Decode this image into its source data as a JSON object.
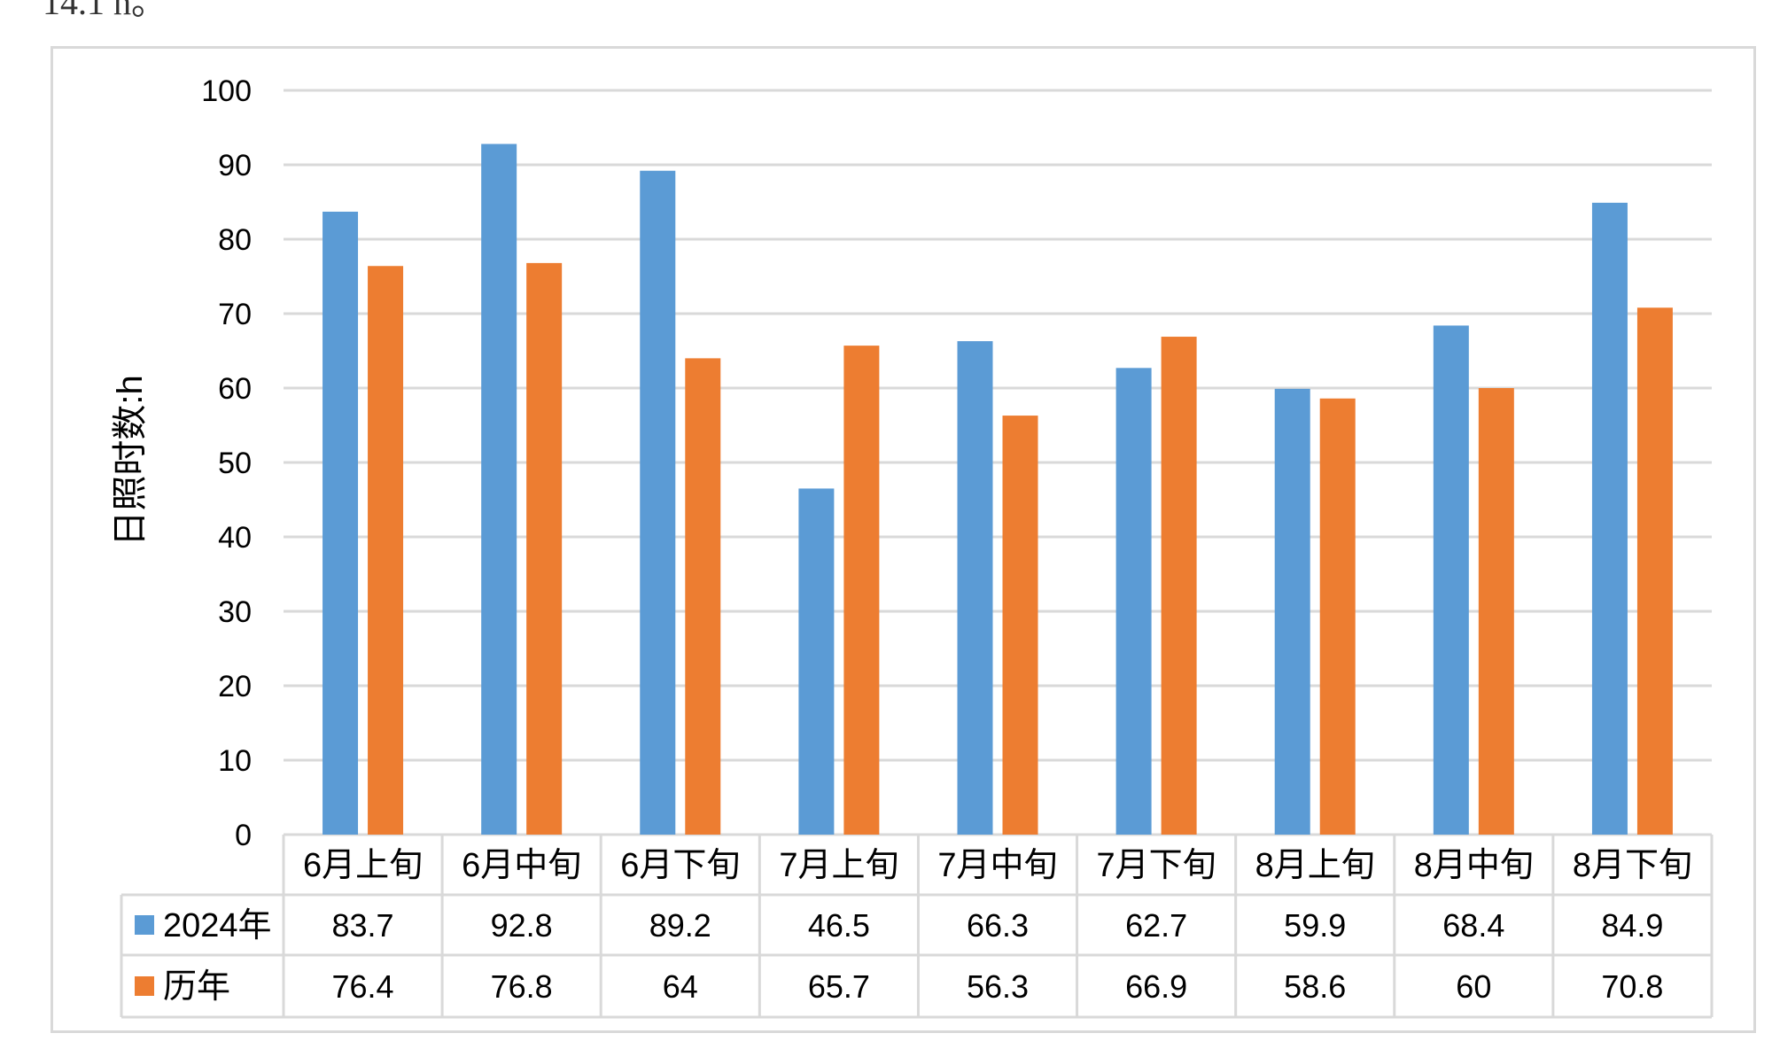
{
  "page_fragment": "14.1 h。",
  "chart_data": {
    "type": "bar",
    "title": "",
    "xlabel": "",
    "ylabel": "日照时数:h",
    "ylim": [
      0,
      100
    ],
    "yticks": [
      0,
      10,
      20,
      30,
      40,
      50,
      60,
      70,
      80,
      90,
      100
    ],
    "grid": true,
    "legend": "data-table",
    "categories": [
      "6月上旬",
      "6月中旬",
      "6月下旬",
      "7月上旬",
      "7月中旬",
      "7月下旬",
      "8月上旬",
      "8月中旬",
      "8月下旬"
    ],
    "series": [
      {
        "name": "2024年",
        "color": "#5b9bd5",
        "values": [
          83.7,
          92.8,
          89.2,
          46.5,
          66.3,
          62.7,
          59.9,
          68.4,
          84.9
        ]
      },
      {
        "name": "历年",
        "color": "#ed7d31",
        "values": [
          76.4,
          76.8,
          64,
          65.7,
          56.3,
          66.9,
          58.6,
          60,
          70.8
        ]
      }
    ]
  }
}
